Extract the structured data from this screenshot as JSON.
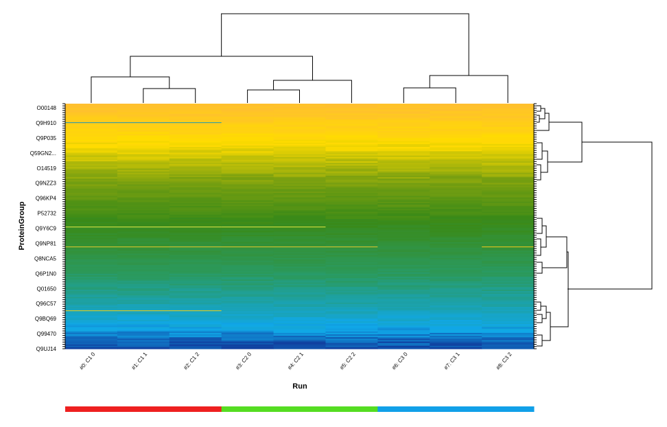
{
  "chart_data": {
    "type": "heatmap",
    "title": "",
    "xlabel": "Run",
    "ylabel": "ProteinGroup",
    "x_tick_labels": [
      "#0: C1 0",
      "#1: C1 1",
      "#2: C1 2",
      "#3: C2 0",
      "#4: C2 1",
      "#5: C2 2",
      "#6: C3 0",
      "#7: C3 1",
      "#8: C3 2"
    ],
    "y_tick_labels": [
      "O00148",
      "Q9H910",
      "Q9P035",
      "Q59GN2...",
      "O14519",
      "Q9NZZ3",
      "Q96KP4",
      "P52732",
      "Q9Y6C9",
      "Q9NP81",
      "Q8NCA5",
      "Q6P1N0",
      "Q01650",
      "Q96C57",
      "Q9BQ69",
      "Q99470",
      "Q9UJ14"
    ],
    "color_scale": [
      "#1040a0",
      "#10a8e8",
      "#2a9a60",
      "#3a8a18",
      "#7aa010",
      "#ffdc00",
      "#ffbf30"
    ],
    "column_dendrogram": true,
    "row_dendrogram": true,
    "group_colors": [
      "#ee2020",
      "#55dd22",
      "#11a0e8"
    ]
  }
}
